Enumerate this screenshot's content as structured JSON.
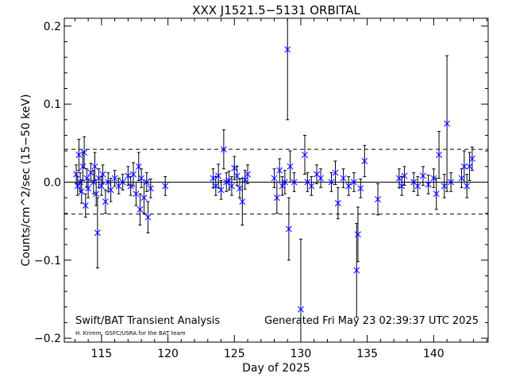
{
  "chart_data": {
    "type": "scatter",
    "title": "XXX J1521.5−5131 ORBITAL",
    "xlabel": "Day of 2025",
    "ylabel": "Counts/cm^2/sec (15−50 keV)",
    "xlim": [
      112.2,
      144.1
    ],
    "ylim": [
      -0.205,
      0.21
    ],
    "x_ticks": [
      115,
      120,
      125,
      130,
      135,
      140
    ],
    "y_ticks": [
      0.2,
      0.1,
      0.0,
      -0.1,
      -0.2
    ],
    "x_tick_labels": [
      "115",
      "120",
      "125",
      "130",
      "135",
      "140"
    ],
    "y_tick_labels": [
      "0.2",
      "0.1",
      "0.0",
      "−0.1",
      "−0.2"
    ],
    "grid": false,
    "reference_lines": [
      {
        "y": 0.0,
        "style": "solid"
      },
      {
        "y": 0.042,
        "style": "dashed"
      },
      {
        "y": -0.041,
        "style": "dashed"
      }
    ],
    "series": [
      {
        "marker": "asterisk",
        "color": "#0000ff",
        "points": [
          {
            "x": 113.1,
            "y": 0.01,
            "err": 0.012
          },
          {
            "x": 113.2,
            "y": -0.005,
            "err": 0.012
          },
          {
            "x": 113.3,
            "y": 0.035,
            "err": 0.02
          },
          {
            "x": 113.4,
            "y": 0.0,
            "err": 0.012
          },
          {
            "x": 113.5,
            "y": -0.012,
            "err": 0.015
          },
          {
            "x": 113.6,
            "y": 0.02,
            "err": 0.018
          },
          {
            "x": 113.7,
            "y": 0.038,
            "err": 0.02
          },
          {
            "x": 113.8,
            "y": -0.03,
            "err": 0.015
          },
          {
            "x": 113.9,
            "y": 0.005,
            "err": 0.012
          },
          {
            "x": 114.0,
            "y": -0.008,
            "err": 0.012
          },
          {
            "x": 114.2,
            "y": 0.012,
            "err": 0.012
          },
          {
            "x": 114.4,
            "y": 0.0,
            "err": 0.015
          },
          {
            "x": 114.5,
            "y": 0.02,
            "err": 0.018
          },
          {
            "x": 114.6,
            "y": -0.015,
            "err": 0.015
          },
          {
            "x": 114.7,
            "y": -0.065,
            "err": 0.045
          },
          {
            "x": 114.8,
            "y": 0.005,
            "err": 0.012
          },
          {
            "x": 115.0,
            "y": -0.005,
            "err": 0.012
          },
          {
            "x": 115.1,
            "y": 0.01,
            "err": 0.012
          },
          {
            "x": 115.3,
            "y": -0.025,
            "err": 0.015
          },
          {
            "x": 115.5,
            "y": 0.0,
            "err": 0.012
          },
          {
            "x": 115.7,
            "y": -0.01,
            "err": 0.015
          },
          {
            "x": 116.0,
            "y": 0.005,
            "err": 0.01
          },
          {
            "x": 116.3,
            "y": -0.005,
            "err": 0.01
          },
          {
            "x": 116.6,
            "y": 0.0,
            "err": 0.01
          },
          {
            "x": 117.0,
            "y": 0.008,
            "err": 0.012
          },
          {
            "x": 117.2,
            "y": -0.005,
            "err": 0.012
          },
          {
            "x": 117.4,
            "y": 0.01,
            "err": 0.015
          },
          {
            "x": 117.6,
            "y": -0.015,
            "err": 0.015
          },
          {
            "x": 117.8,
            "y": 0.02,
            "err": 0.018
          },
          {
            "x": 117.9,
            "y": -0.035,
            "err": 0.02
          },
          {
            "x": 118.0,
            "y": 0.005,
            "err": 0.012
          },
          {
            "x": 118.2,
            "y": -0.02,
            "err": 0.02
          },
          {
            "x": 118.4,
            "y": 0.0,
            "err": 0.012
          },
          {
            "x": 118.5,
            "y": -0.045,
            "err": 0.02
          },
          {
            "x": 118.7,
            "y": -0.008,
            "err": 0.012
          },
          {
            "x": 119.8,
            "y": -0.005,
            "err": 0.012
          },
          {
            "x": 123.4,
            "y": 0.005,
            "err": 0.012
          },
          {
            "x": 123.6,
            "y": -0.005,
            "err": 0.012
          },
          {
            "x": 123.8,
            "y": 0.008,
            "err": 0.015
          },
          {
            "x": 124.0,
            "y": -0.01,
            "err": 0.012
          },
          {
            "x": 124.2,
            "y": 0.042,
            "err": 0.025
          },
          {
            "x": 124.4,
            "y": 0.0,
            "err": 0.012
          },
          {
            "x": 124.6,
            "y": 0.002,
            "err": 0.012
          },
          {
            "x": 124.8,
            "y": -0.005,
            "err": 0.012
          },
          {
            "x": 125.0,
            "y": 0.018,
            "err": 0.015
          },
          {
            "x": 125.2,
            "y": 0.008,
            "err": 0.012
          },
          {
            "x": 125.4,
            "y": -0.008,
            "err": 0.012
          },
          {
            "x": 125.6,
            "y": -0.025,
            "err": 0.03
          },
          {
            "x": 125.8,
            "y": 0.003,
            "err": 0.012
          },
          {
            "x": 126.0,
            "y": 0.01,
            "err": 0.012
          },
          {
            "x": 128.0,
            "y": 0.005,
            "err": 0.012
          },
          {
            "x": 128.2,
            "y": -0.02,
            "err": 0.02
          },
          {
            "x": 128.4,
            "y": 0.015,
            "err": 0.015
          },
          {
            "x": 128.6,
            "y": -0.005,
            "err": 0.012
          },
          {
            "x": 128.8,
            "y": 0.0,
            "err": 0.015
          },
          {
            "x": 129.0,
            "y": 0.17,
            "err": 0.09
          },
          {
            "x": 129.1,
            "y": -0.06,
            "err": 0.04
          },
          {
            "x": 129.2,
            "y": 0.02,
            "err": 0.02
          },
          {
            "x": 129.5,
            "y": 0.0,
            "err": 0.012
          },
          {
            "x": 130.0,
            "y": -0.163,
            "err": 0.09
          },
          {
            "x": 130.3,
            "y": 0.035,
            "err": 0.025
          },
          {
            "x": 130.5,
            "y": 0.0,
            "err": 0.012
          },
          {
            "x": 130.8,
            "y": -0.005,
            "err": 0.012
          },
          {
            "x": 131.2,
            "y": 0.01,
            "err": 0.012
          },
          {
            "x": 131.5,
            "y": 0.005,
            "err": 0.012
          },
          {
            "x": 132.3,
            "y": 0.0,
            "err": 0.012
          },
          {
            "x": 132.6,
            "y": 0.012,
            "err": 0.015
          },
          {
            "x": 132.8,
            "y": -0.027,
            "err": 0.02
          },
          {
            "x": 133.2,
            "y": 0.005,
            "err": 0.012
          },
          {
            "x": 133.6,
            "y": -0.005,
            "err": 0.012
          },
          {
            "x": 134.0,
            "y": 0.0,
            "err": 0.012
          },
          {
            "x": 134.2,
            "y": -0.113,
            "err": 0.06
          },
          {
            "x": 134.3,
            "y": -0.067,
            "err": 0.035
          },
          {
            "x": 134.5,
            "y": -0.008,
            "err": 0.012
          },
          {
            "x": 134.8,
            "y": 0.027,
            "err": 0.02
          },
          {
            "x": 135.8,
            "y": -0.022,
            "err": 0.02
          },
          {
            "x": 137.4,
            "y": 0.005,
            "err": 0.012
          },
          {
            "x": 137.6,
            "y": -0.005,
            "err": 0.012
          },
          {
            "x": 137.8,
            "y": 0.008,
            "err": 0.012
          },
          {
            "x": 138.5,
            "y": 0.0,
            "err": 0.012
          },
          {
            "x": 138.8,
            "y": -0.005,
            "err": 0.012
          },
          {
            "x": 139.2,
            "y": 0.008,
            "err": 0.012
          },
          {
            "x": 139.6,
            "y": -0.003,
            "err": 0.012
          },
          {
            "x": 140.0,
            "y": 0.005,
            "err": 0.012
          },
          {
            "x": 140.2,
            "y": -0.015,
            "err": 0.02
          },
          {
            "x": 140.4,
            "y": 0.035,
            "err": 0.03
          },
          {
            "x": 140.8,
            "y": -0.005,
            "err": 0.015
          },
          {
            "x": 141.0,
            "y": 0.075,
            "err": 0.087
          },
          {
            "x": 141.3,
            "y": 0.0,
            "err": 0.012
          },
          {
            "x": 142.1,
            "y": 0.005,
            "err": 0.012
          },
          {
            "x": 142.3,
            "y": 0.02,
            "err": 0.02
          },
          {
            "x": 142.5,
            "y": -0.005,
            "err": 0.015
          },
          {
            "x": 142.7,
            "y": 0.02,
            "err": 0.018
          },
          {
            "x": 142.9,
            "y": 0.03,
            "err": 0.015
          }
        ]
      }
    ]
  },
  "footer": {
    "left_label": "Swift/BAT Transient Analysis",
    "right_label": "Generated Fri May 23 02:39:37 UTC 2025",
    "credit": "H. Krimm, GSFC/USRA for the BAT team"
  }
}
